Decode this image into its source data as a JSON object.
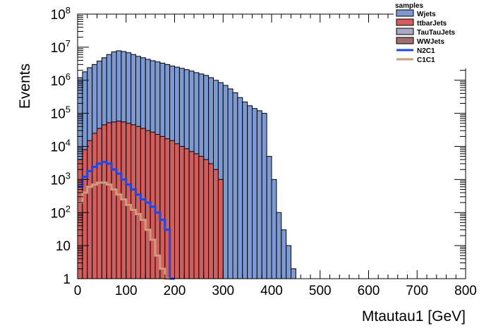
{
  "chart_data": {
    "type": "histogram",
    "ylog": true,
    "xlabel": "Mtautau1 [GeV]",
    "ylabel": "Events",
    "xlim": [
      0,
      800
    ],
    "ylim": [
      1,
      100000000
    ],
    "x_ticks": [
      0,
      100,
      200,
      300,
      400,
      500,
      600,
      700,
      800
    ],
    "y_ticks": [
      {
        "value": 1,
        "label": "1"
      },
      {
        "value": 10,
        "label": "10"
      },
      {
        "value": 100,
        "base": "10",
        "exp": "2"
      },
      {
        "value": 1000,
        "base": "10",
        "exp": "3"
      },
      {
        "value": 10000,
        "base": "10",
        "exp": "4"
      },
      {
        "value": 100000,
        "base": "10",
        "exp": "5"
      },
      {
        "value": 1000000,
        "base": "10",
        "exp": "6"
      },
      {
        "value": 10000000,
        "base": "10",
        "exp": "7"
      },
      {
        "value": 100000000,
        "base": "10",
        "exp": "8"
      }
    ],
    "legend_title": "samples",
    "legend_position": "top-right",
    "series": [
      {
        "name": "Wjets",
        "style": "fill",
        "color": "#7c99d1",
        "points": [
          [
            5,
            1200000
          ],
          [
            15,
            1800000
          ],
          [
            25,
            2400000
          ],
          [
            35,
            3000000
          ],
          [
            45,
            3800000
          ],
          [
            55,
            4800000
          ],
          [
            65,
            6000000
          ],
          [
            75,
            7200000
          ],
          [
            85,
            7800000
          ],
          [
            95,
            7400000
          ],
          [
            105,
            6800000
          ],
          [
            115,
            6000000
          ],
          [
            125,
            5300000
          ],
          [
            135,
            4800000
          ],
          [
            145,
            4300000
          ],
          [
            155,
            3900000
          ],
          [
            165,
            3600000
          ],
          [
            175,
            3300000
          ],
          [
            185,
            3000000
          ],
          [
            195,
            2700000
          ],
          [
            205,
            2500000
          ],
          [
            215,
            2300000
          ],
          [
            225,
            2100000
          ],
          [
            235,
            1900000
          ],
          [
            245,
            1700000
          ],
          [
            255,
            1550000
          ],
          [
            265,
            1400000
          ],
          [
            275,
            1200000
          ],
          [
            285,
            1000000
          ],
          [
            295,
            850000
          ],
          [
            305,
            700000
          ],
          [
            315,
            550000
          ],
          [
            325,
            420000
          ],
          [
            335,
            300000
          ],
          [
            345,
            220000
          ],
          [
            355,
            170000
          ],
          [
            365,
            140000
          ],
          [
            375,
            120000
          ],
          [
            385,
            100000
          ],
          [
            395,
            5000
          ],
          [
            405,
            1000
          ],
          [
            415,
            100
          ],
          [
            425,
            30
          ],
          [
            435,
            10
          ],
          [
            445,
            2
          ]
        ]
      },
      {
        "name": "ttbarJets",
        "style": "fill",
        "color": "#d35c5c",
        "points": [
          [
            5,
            4000
          ],
          [
            15,
            8000
          ],
          [
            25,
            15000
          ],
          [
            35,
            25000
          ],
          [
            45,
            35000
          ],
          [
            55,
            45000
          ],
          [
            65,
            52000
          ],
          [
            75,
            55000
          ],
          [
            85,
            58000
          ],
          [
            95,
            55000
          ],
          [
            105,
            50000
          ],
          [
            115,
            45000
          ],
          [
            125,
            40000
          ],
          [
            135,
            35000
          ],
          [
            145,
            30000
          ],
          [
            155,
            27000
          ],
          [
            165,
            23000
          ],
          [
            175,
            20000
          ],
          [
            185,
            17000
          ],
          [
            195,
            15000
          ],
          [
            205,
            12000
          ],
          [
            215,
            10000
          ],
          [
            225,
            8500
          ],
          [
            235,
            7000
          ],
          [
            245,
            6000
          ],
          [
            255,
            5000
          ],
          [
            265,
            4000
          ],
          [
            275,
            3000
          ],
          [
            285,
            2000
          ],
          [
            295,
            1000
          ]
        ]
      },
      {
        "name": "TauTauJets",
        "style": "fill",
        "color": "#a9a9c6",
        "points": []
      },
      {
        "name": "WWJets",
        "style": "fill",
        "color": "#9e7070",
        "points": []
      },
      {
        "name": "N2C1",
        "style": "line",
        "color": "#1a48e6",
        "points": [
          [
            5,
            600
          ],
          [
            15,
            1200
          ],
          [
            25,
            1800
          ],
          [
            35,
            2400
          ],
          [
            45,
            3000
          ],
          [
            55,
            3400
          ],
          [
            65,
            3000
          ],
          [
            75,
            2000
          ],
          [
            85,
            1500
          ],
          [
            95,
            1000
          ],
          [
            105,
            700
          ],
          [
            115,
            500
          ],
          [
            125,
            350
          ],
          [
            135,
            250
          ],
          [
            145,
            200
          ],
          [
            155,
            150
          ],
          [
            165,
            100
          ],
          [
            175,
            60
          ],
          [
            185,
            30
          ],
          [
            195,
            1
          ]
        ]
      },
      {
        "name": "C1C1",
        "style": "line",
        "color": "#cc9c7d",
        "points": [
          [
            5,
            200
          ],
          [
            15,
            400
          ],
          [
            25,
            600
          ],
          [
            35,
            700
          ],
          [
            45,
            800
          ],
          [
            55,
            800
          ],
          [
            65,
            700
          ],
          [
            75,
            500
          ],
          [
            85,
            350
          ],
          [
            95,
            250
          ],
          [
            105,
            170
          ],
          [
            115,
            120
          ],
          [
            125,
            90
          ],
          [
            135,
            60
          ],
          [
            145,
            30
          ],
          [
            155,
            15
          ],
          [
            165,
            5
          ],
          [
            175,
            2
          ],
          [
            185,
            1
          ]
        ]
      }
    ]
  }
}
